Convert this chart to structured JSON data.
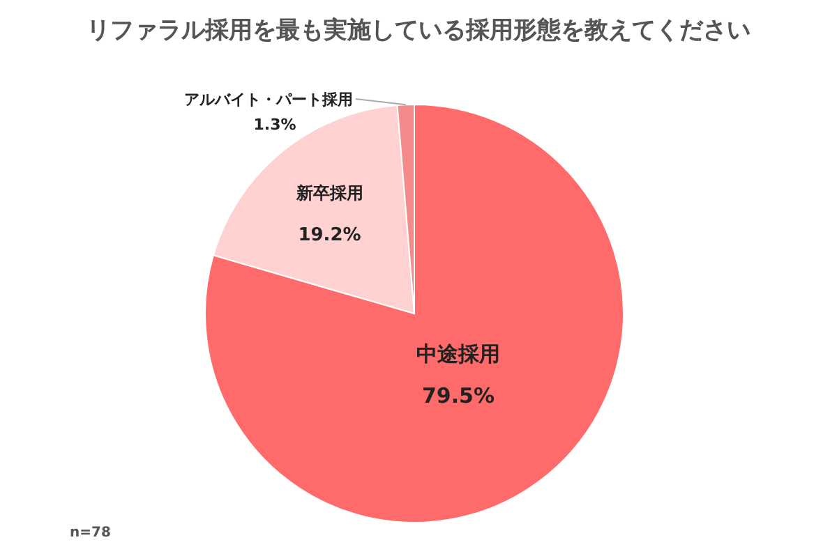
{
  "chart_data": {
    "type": "pie",
    "title": "リファラル採用を最も実施している採用形態を教えてください",
    "categories": [
      "中途採用",
      "新卒採用",
      "アルバイト・パート採用"
    ],
    "values": [
      79.5,
      19.2,
      1.3
    ],
    "colors": [
      "#ff6b6b",
      "#ffd1d1",
      "#f48a8a"
    ],
    "value_labels": [
      "79.5%",
      "19.2%",
      "1.3%"
    ],
    "annotations": [
      "n=78"
    ]
  }
}
